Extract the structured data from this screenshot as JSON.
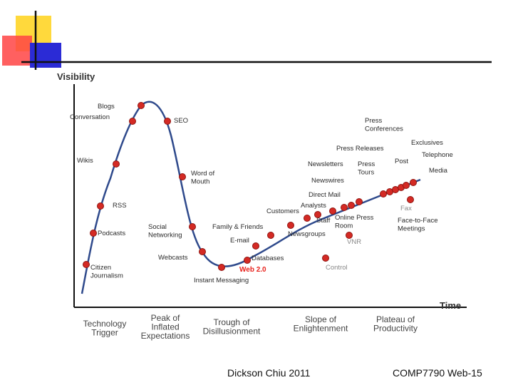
{
  "axes": {
    "y_label": "Visibility",
    "x_label": "Time"
  },
  "phases": [
    {
      "lines": [
        "Technology",
        "Trigger"
      ]
    },
    {
      "lines": [
        "Peak of",
        "Inflated",
        "Expectations"
      ]
    },
    {
      "lines": [
        "Trough of",
        "Disillusionment"
      ]
    },
    {
      "lines": [
        "Slope of",
        "Enlightenment"
      ]
    },
    {
      "lines": [
        "Plateau of",
        "Productivity"
      ]
    }
  ],
  "labels": [
    {
      "id": "blogs",
      "lines": [
        "Blogs"
      ],
      "style": "normal"
    },
    {
      "id": "conversation",
      "lines": [
        "Conversation"
      ],
      "style": "normal"
    },
    {
      "id": "seo",
      "lines": [
        "SEO"
      ],
      "style": "normal"
    },
    {
      "id": "wikis",
      "lines": [
        "Wikis"
      ],
      "style": "normal"
    },
    {
      "id": "word-of-mouth",
      "lines": [
        "Word of",
        "Mouth"
      ],
      "style": "normal"
    },
    {
      "id": "rss",
      "lines": [
        "RSS"
      ],
      "style": "normal"
    },
    {
      "id": "podcasts",
      "lines": [
        "Podcasts"
      ],
      "style": "normal"
    },
    {
      "id": "social-networking",
      "lines": [
        "Social",
        "Networking"
      ],
      "style": "normal"
    },
    {
      "id": "citizen-journalism",
      "lines": [
        "Citizen",
        "Journalism"
      ],
      "style": "normal"
    },
    {
      "id": "webcasts",
      "lines": [
        "Webcasts"
      ],
      "style": "normal"
    },
    {
      "id": "instant-messaging",
      "lines": [
        "Instant Messaging"
      ],
      "style": "normal"
    },
    {
      "id": "family-friends",
      "lines": [
        "Family & Friends"
      ],
      "style": "normal"
    },
    {
      "id": "email",
      "lines": [
        "E-mail"
      ],
      "style": "normal"
    },
    {
      "id": "databases",
      "lines": [
        "Databases"
      ],
      "style": "normal"
    },
    {
      "id": "web20",
      "lines": [
        "Web 2.0"
      ],
      "style": "red"
    },
    {
      "id": "newsgroups",
      "lines": [
        "Newsgroups"
      ],
      "style": "normal"
    },
    {
      "id": "customers",
      "lines": [
        "Customers"
      ],
      "style": "normal"
    },
    {
      "id": "analysts",
      "lines": [
        "Analysts"
      ],
      "style": "normal"
    },
    {
      "id": "staff",
      "lines": [
        "Staff"
      ],
      "style": "normal"
    },
    {
      "id": "direct-mail",
      "lines": [
        "Direct Mail"
      ],
      "style": "normal"
    },
    {
      "id": "online-press-room",
      "lines": [
        "Online Press",
        "Room"
      ],
      "style": "normal"
    },
    {
      "id": "newswires",
      "lines": [
        "Newswires"
      ],
      "style": "normal"
    },
    {
      "id": "newsletters",
      "lines": [
        "Newsletters"
      ],
      "style": "normal"
    },
    {
      "id": "press-tours",
      "lines": [
        "Press",
        "Tours"
      ],
      "style": "normal"
    },
    {
      "id": "press-releases",
      "lines": [
        "Press Releases"
      ],
      "style": "normal"
    },
    {
      "id": "press-conferences",
      "lines": [
        "Press",
        "Conferences"
      ],
      "style": "normal"
    },
    {
      "id": "post",
      "lines": [
        "Post"
      ],
      "style": "normal"
    },
    {
      "id": "exclusives",
      "lines": [
        "Exclusives"
      ],
      "style": "normal"
    },
    {
      "id": "telephone",
      "lines": [
        "Telephone"
      ],
      "style": "normal"
    },
    {
      "id": "media",
      "lines": [
        "Media"
      ],
      "style": "normal"
    },
    {
      "id": "fax",
      "lines": [
        "Fax"
      ],
      "style": "gray"
    },
    {
      "id": "face-to-face",
      "lines": [
        "Face-to-Face",
        "Meetings"
      ],
      "style": "normal"
    },
    {
      "id": "vnr",
      "lines": [
        "VNR"
      ],
      "style": "gray"
    },
    {
      "id": "control",
      "lines": [
        "Control"
      ],
      "style": "gray"
    }
  ],
  "footer": {
    "author": "Dickson Chiu 2011",
    "course": "COMP7790 Web-15"
  },
  "colors": {
    "curve": "#2f4a8c",
    "dot": "#d42a24",
    "dot_stroke": "#8e1410",
    "axis": "#111111"
  }
}
